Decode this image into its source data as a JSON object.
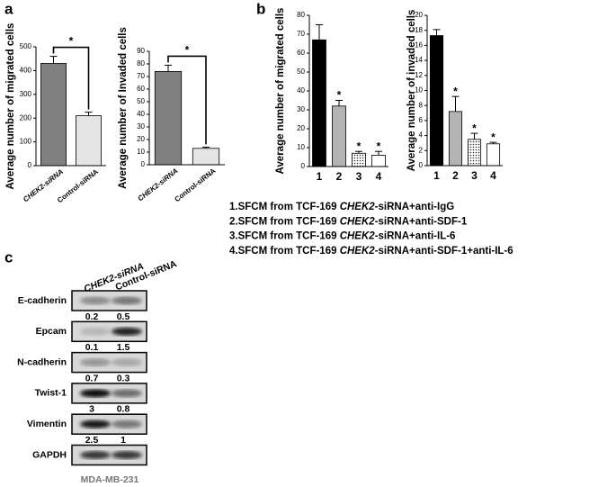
{
  "panel_labels": [
    "a",
    "b",
    "c"
  ],
  "chart_data": [
    {
      "type": "bar",
      "ylabel": "Average number of migrated cells",
      "categories": [
        "CHEK2-siRNA",
        "Control-siRNA"
      ],
      "values": [
        430,
        210
      ],
      "errors": [
        30,
        15
      ],
      "colors": [
        "#808080",
        "#e4e4e4"
      ],
      "ylim": [
        0,
        500
      ],
      "yticks": [
        0,
        100,
        200,
        300,
        400,
        500
      ],
      "significance": "*"
    },
    {
      "type": "bar",
      "ylabel": "Average number of Invaded cells",
      "categories": [
        "CHEK2-siRNA",
        "Control-siRNA"
      ],
      "values": [
        74,
        13
      ],
      "errors": [
        5,
        1
      ],
      "colors": [
        "#808080",
        "#e4e4e4"
      ],
      "ylim": [
        0,
        90
      ],
      "yticks": [
        0,
        10,
        20,
        30,
        40,
        50,
        60,
        70,
        80,
        90
      ],
      "significance": "*"
    },
    {
      "type": "bar",
      "ylabel": "Average number of migrated cells",
      "categories": [
        "1",
        "2",
        "3",
        "4"
      ],
      "values": [
        67,
        32,
        7,
        6
      ],
      "errors": [
        8,
        3,
        1,
        2
      ],
      "colors": [
        "#000000",
        "#b4b4b4",
        "#ffffff",
        "#ffffff"
      ],
      "hatch": [
        false,
        false,
        true,
        false
      ],
      "ylim": [
        0,
        80
      ],
      "yticks": [
        0,
        10,
        20,
        30,
        40,
        50,
        60,
        70,
        80
      ],
      "bar_labels": [
        null,
        "*",
        "*",
        "*"
      ]
    },
    {
      "type": "bar",
      "ylabel": "Average number of invaded cells",
      "categories": [
        "1",
        "2",
        "3",
        "4"
      ],
      "values": [
        17.3,
        7.2,
        3.5,
        2.9
      ],
      "errors": [
        0.8,
        2,
        0.8,
        0.2
      ],
      "colors": [
        "#000000",
        "#b4b4b4",
        "#ffffff",
        "#ffffff"
      ],
      "hatch": [
        false,
        false,
        true,
        false
      ],
      "ylim": [
        0,
        20
      ],
      "yticks": [
        0,
        2,
        4,
        6,
        8,
        10,
        12,
        14,
        16,
        18,
        20
      ],
      "bar_labels": [
        null,
        "*",
        "*",
        "*"
      ]
    }
  ],
  "treatments": [
    {
      "prefix": "1.SFCM from TCF-169 ",
      "gene": "CHEK2",
      "suffix": "-siRNA+anti-IgG"
    },
    {
      "prefix": "2.SFCM from TCF-169 ",
      "gene": "CHEK2",
      "suffix": "-siRNA+anti-SDF-1"
    },
    {
      "prefix": "3.SFCM from TCF-169 ",
      "gene": "CHEK2",
      "suffix": "-siRNA+anti-IL-6"
    },
    {
      "prefix": "4.SFCM from TCF-169 ",
      "gene": "CHEK2",
      "suffix": "-siRNA+anti-SDF-1+anti-IL-6"
    }
  ],
  "blot": {
    "columns": [
      "CHEK2-siRNA",
      "Control-siRNA"
    ],
    "rows": [
      {
        "label": "E-cadherin",
        "values": [
          0.2,
          0.5
        ]
      },
      {
        "label": "Epcam",
        "values": [
          0.1,
          1.5
        ]
      },
      {
        "label": "N-cadherin",
        "values": [
          0.7,
          0.3
        ]
      },
      {
        "label": "Twist-1",
        "values": [
          3,
          0.8
        ]
      },
      {
        "label": "Vimentin",
        "values": [
          2.5,
          1
        ]
      },
      {
        "label": "GAPDH"
      }
    ],
    "cell_line": "MDA-MB-231"
  }
}
